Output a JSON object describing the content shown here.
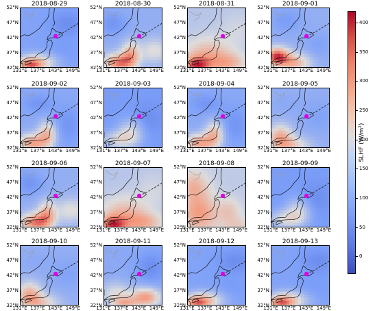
{
  "panels": [
    {
      "date": "2018-08-29",
      "pattern": "warm_south_weak"
    },
    {
      "date": "2018-08-30",
      "pattern": "warm_japan_strong"
    },
    {
      "date": "2018-08-31",
      "pattern": "warm_widespread"
    },
    {
      "date": "2018-09-01",
      "pattern": "warm_southwest_strong"
    },
    {
      "date": "2018-09-02",
      "pattern": "warm_japan"
    },
    {
      "date": "2018-09-03",
      "pattern": "cool_mostly"
    },
    {
      "date": "2018-09-04",
      "pattern": "warm_japan"
    },
    {
      "date": "2018-09-05",
      "pattern": "warm_southwest"
    },
    {
      "date": "2018-09-06",
      "pattern": "warm_japan_strong"
    },
    {
      "date": "2018-09-07",
      "pattern": "warm_widespread"
    },
    {
      "date": "2018-09-08",
      "pattern": "warm_widespread_strong"
    },
    {
      "date": "2018-09-09",
      "pattern": "cool_mostly"
    },
    {
      "date": "2018-09-10",
      "pattern": "warm_southwest"
    },
    {
      "date": "2018-09-11",
      "pattern": "warm_south"
    },
    {
      "date": "2018-09-12",
      "pattern": "warm_south_weak"
    },
    {
      "date": "2018-09-13",
      "pattern": "warm_south_weak"
    }
  ],
  "lat_ticks": [
    "52°N",
    "47°N",
    "42°N",
    "37°N",
    "32°N"
  ],
  "lon_ticks": [
    "131°E",
    "137°E",
    "143°E",
    "149°E"
  ],
  "colorbar": {
    "label": "SLHF (W/m²)",
    "ticks": [
      "0",
      "50",
      "100",
      "150",
      "200",
      "250",
      "300",
      "350",
      "400"
    ],
    "range": [
      -30,
      420
    ],
    "colormap": "coolwarm"
  },
  "marker": {
    "color": "#e000e0",
    "lon": 142.9,
    "lat": 42.7
  },
  "track_color": "#222222"
}
